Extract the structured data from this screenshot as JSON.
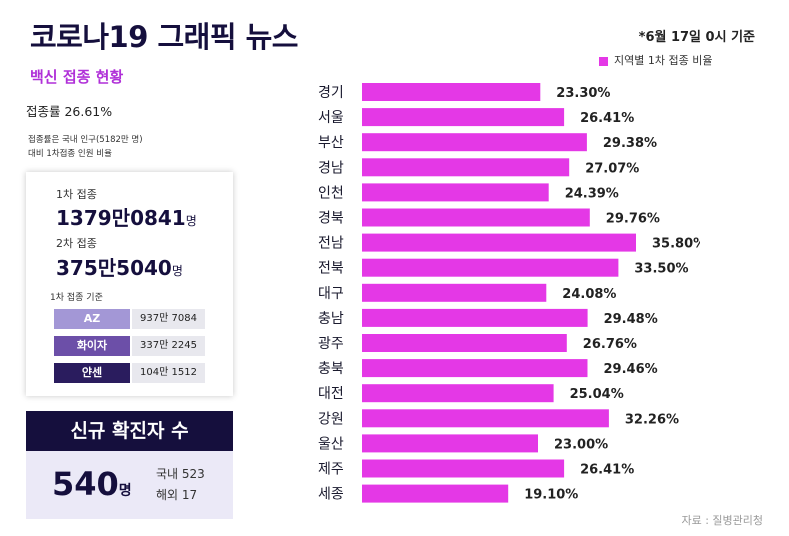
{
  "header": {
    "title": "코로나19 그래픽 뉴스",
    "subtitle": "백신 접종 현황",
    "date_note": "*6월 17일 0시 기준",
    "source": "자료 : 질병관리청"
  },
  "vaccination": {
    "rate_text": "접종률 26.61%",
    "rate_note_line1": "접종률은 국내 인구(5182만 명)",
    "rate_note_line2": "대비 1차접종 인원 비율",
    "first_dose_label": "1차 접종",
    "first_dose_value": "1379만0841",
    "second_dose_label": "2차 접종",
    "second_dose_value": "375만5040",
    "unit": "명",
    "basis_label": "1차 접종 기준",
    "vaccines": [
      {
        "name": "AZ",
        "count": "937만 7084",
        "color": "#a397d6"
      },
      {
        "name": "화이자",
        "count": "337만 2245",
        "color": "#6c4fa8"
      },
      {
        "name": "얀센",
        "count": "104만 1512",
        "color": "#2a1c5e"
      }
    ]
  },
  "cases": {
    "header": "신규 확진자 수",
    "total": "540",
    "unit": "명",
    "domestic": "국내 523",
    "overseas": "해외 17"
  },
  "colors": {
    "bar": "#e438e6",
    "navy": "#150f3d"
  },
  "chart_data": {
    "type": "bar",
    "orientation": "horizontal",
    "title": "",
    "legend": [
      "지역별 1차 접종 비율"
    ],
    "legend_position": "top-right",
    "categories": [
      "경기",
      "서울",
      "부산",
      "경남",
      "인천",
      "경북",
      "전남",
      "전북",
      "대구",
      "충남",
      "광주",
      "충북",
      "대전",
      "강원",
      "울산",
      "제주",
      "세종"
    ],
    "values": [
      23.3,
      26.41,
      29.38,
      27.07,
      24.39,
      29.76,
      35.8,
      33.5,
      24.08,
      29.48,
      26.76,
      29.46,
      25.04,
      32.26,
      23.0,
      26.41,
      19.1
    ],
    "value_labels": [
      "23.30%",
      "26.41%",
      "29.38%",
      "27.07%",
      "24.39%",
      "29.76%",
      "35.80%",
      "33.50%",
      "24.08%",
      "29.48%",
      "26.76%",
      "29.46%",
      "25.04%",
      "32.26%",
      "23.00%",
      "26.41%",
      "19.10%"
    ],
    "xlim": [
      0,
      35.8
    ],
    "grid": false
  }
}
